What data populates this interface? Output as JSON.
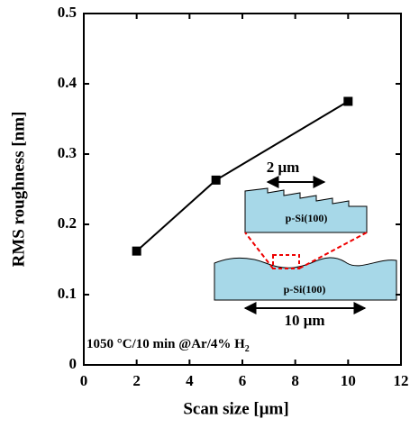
{
  "chart_data": {
    "type": "line",
    "x_label": "Scan size [μm]",
    "y_label": "RMS roughness [nm]",
    "x": [
      2,
      5,
      10
    ],
    "series": [
      {
        "values": [
          0.162,
          0.263,
          0.375
        ],
        "color": "#000000"
      }
    ],
    "xlim": [
      0,
      12
    ],
    "xticks": [
      0,
      2,
      4,
      6,
      8,
      10,
      12
    ],
    "ylim": [
      0,
      0.5
    ],
    "yticks": [
      0,
      0.1,
      0.2,
      0.3,
      0.4,
      0.5
    ],
    "annotation": "1050 °C/10 min @Ar/4% H",
    "annotation_subscript": "2",
    "inset": {
      "top_scale": "2 μm",
      "top_label": "p-Si(100)",
      "bottom_label": "p-Si(100)",
      "bottom_scale": "10 μm"
    }
  }
}
